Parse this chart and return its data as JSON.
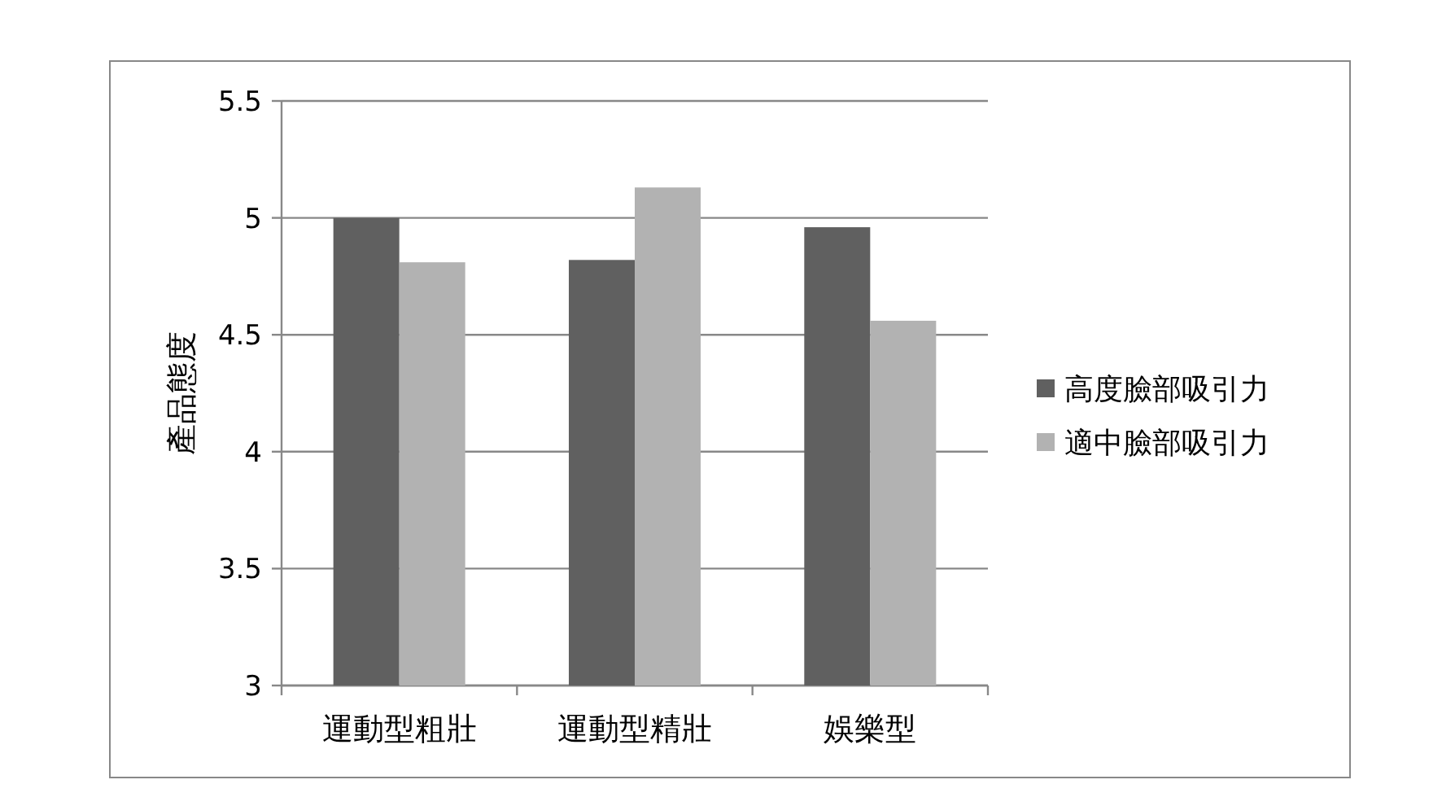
{
  "chart_data": {
    "type": "bar",
    "ylabel": "產品態度",
    "categories": [
      "運動型粗壯",
      "運動型精壯",
      "娛樂型"
    ],
    "series": [
      {
        "name": "高度臉部吸引力",
        "color": "#606060",
        "values": [
          5.0,
          4.82,
          4.96
        ]
      },
      {
        "name": "適中臉部吸引力",
        "color": "#b2b2b2",
        "values": [
          4.81,
          5.13,
          4.56
        ]
      }
    ],
    "ylim": [
      3,
      5.5
    ],
    "yticks": [
      3,
      3.5,
      4,
      4.5,
      5,
      5.5
    ],
    "grid": "y",
    "legend": "right"
  }
}
